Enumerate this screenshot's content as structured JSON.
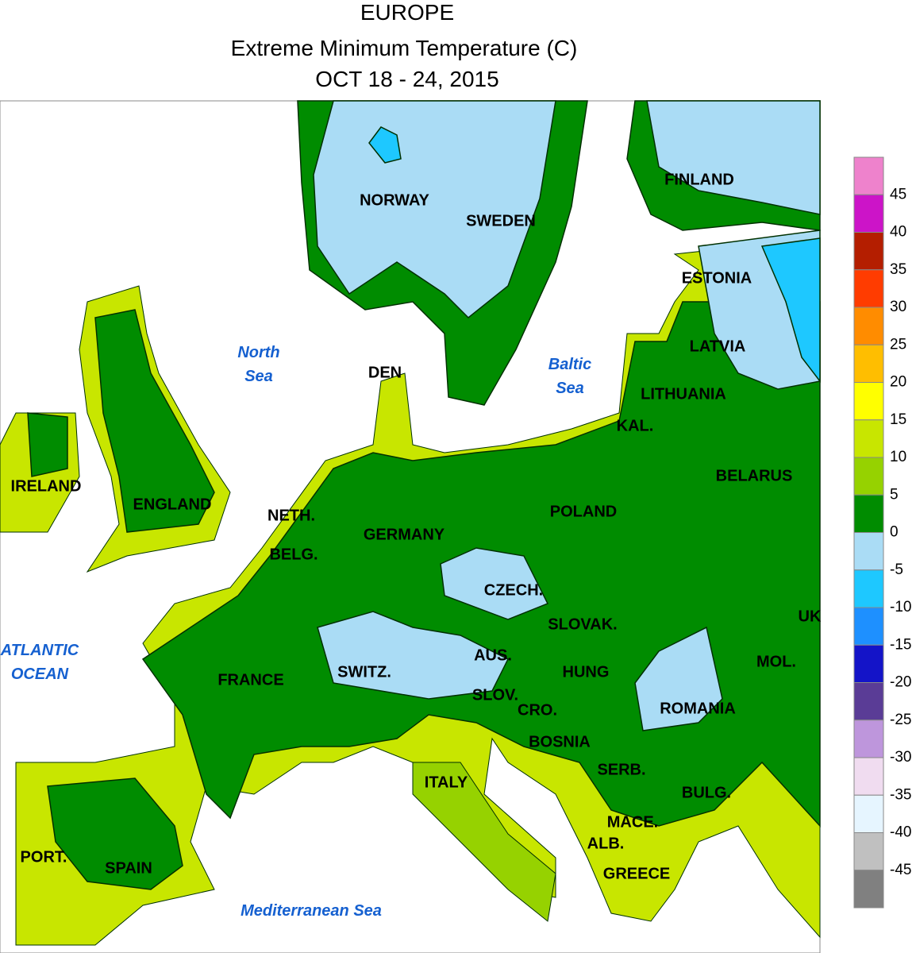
{
  "header": {
    "lines": [
      "EUROPE",
      "Extreme Minimum Temperature (C)",
      "OCT 18 - 24, 2015"
    ]
  },
  "countries": [
    "NORWAY",
    "SWEDEN",
    "FINLAND",
    "ESTONIA",
    "LATVIA",
    "LITHUANIA",
    "KAL.",
    "DEN",
    "BELARUS",
    "POLAND",
    "IRELAND",
    "ENGLAND",
    "NETH.",
    "BELG.",
    "GERMANY",
    "CZECH.",
    "SLOVAK.",
    "UK",
    "AUS.",
    "HUNG",
    "MOL.",
    "FRANCE",
    "SWITZ.",
    "SLOV.",
    "CRO.",
    "ROMANIA",
    "BOSNIA",
    "SERB.",
    "ITALY",
    "BULG.",
    "MACE.",
    "ALB.",
    "PORT.",
    "SPAIN",
    "GREECE"
  ],
  "seas": [
    {
      "lines": [
        "North",
        "Sea"
      ]
    },
    {
      "lines": [
        "Baltic",
        "Sea"
      ]
    },
    {
      "lines": [
        "ATLANTIC",
        "OCEAN"
      ]
    },
    {
      "lines": [
        "Mediterranean Sea"
      ]
    }
  ],
  "colorbar": {
    "ticks": [
      45,
      40,
      35,
      30,
      25,
      20,
      15,
      10,
      5,
      0,
      -5,
      -10,
      -15,
      -20,
      -25,
      -30,
      -35,
      -40,
      -45
    ],
    "colors": [
      "#ee82cc",
      "#cc14c8",
      "#b41e00",
      "#ff3c00",
      "#ff8c00",
      "#ffbe00",
      "#ffff00",
      "#c8e600",
      "#96d200",
      "#008c00",
      "#aadcf5",
      "#1ec8ff",
      "#1e90ff",
      "#1414c8",
      "#5a3c96",
      "#be96dc",
      "#f0dcf0",
      "#e6f5ff",
      "#c0c0c0",
      "#808080"
    ]
  }
}
